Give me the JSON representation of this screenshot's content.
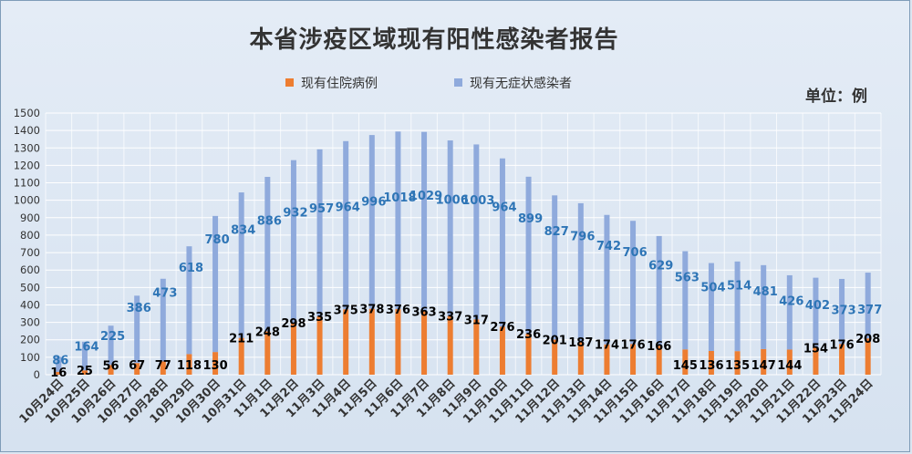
{
  "colors": {
    "hospitalized": "#ed7d31",
    "asymptomatic": "#8faadc",
    "asym_label": "#2e75b6",
    "hosp_label": "#000000",
    "grid": "#ffffff",
    "axis_text": "#333333"
  },
  "chart_data": {
    "type": "bar",
    "stacked": true,
    "title": "本省涉疫区域现有阳性感染者报告",
    "unit_label": "单位：例",
    "legend_position": "top",
    "grid": true,
    "ylim": [
      0,
      1500
    ],
    "yticks": [
      0,
      100,
      200,
      300,
      400,
      500,
      600,
      700,
      800,
      900,
      1000,
      1100,
      1200,
      1300,
      1400,
      1500
    ],
    "categories": [
      "10月24日",
      "10月25日",
      "10月26日",
      "10月27日",
      "10月28日",
      "10月29日",
      "10月30日",
      "10月31日",
      "11月1日",
      "11月2日",
      "11月3日",
      "11月4日",
      "11月5日",
      "11月6日",
      "11月7日",
      "11月8日",
      "11月9日",
      "11月10日",
      "11月11日",
      "11月12日",
      "11月13日",
      "11月14日",
      "11月15日",
      "11月16日",
      "11月17日",
      "11月18日",
      "11月19日",
      "11月20日",
      "11月21日",
      "11月22日",
      "11月23日",
      "11月24日"
    ],
    "series": [
      {
        "name": "现有住院病例",
        "values": [
          16,
          25,
          56,
          67,
          77,
          118,
          130,
          211,
          248,
          298,
          335,
          375,
          378,
          376,
          363,
          337,
          317,
          276,
          236,
          201,
          187,
          174,
          176,
          166,
          145,
          136,
          135,
          147,
          144,
          154,
          176,
          208
        ]
      },
      {
        "name": "现有无症状感染者",
        "values": [
          86,
          164,
          225,
          386,
          473,
          618,
          780,
          834,
          886,
          932,
          957,
          964,
          996,
          1018,
          1029,
          1006,
          1003,
          964,
          899,
          827,
          796,
          742,
          706,
          629,
          563,
          504,
          514,
          481,
          426,
          402,
          373,
          377
        ]
      }
    ]
  }
}
